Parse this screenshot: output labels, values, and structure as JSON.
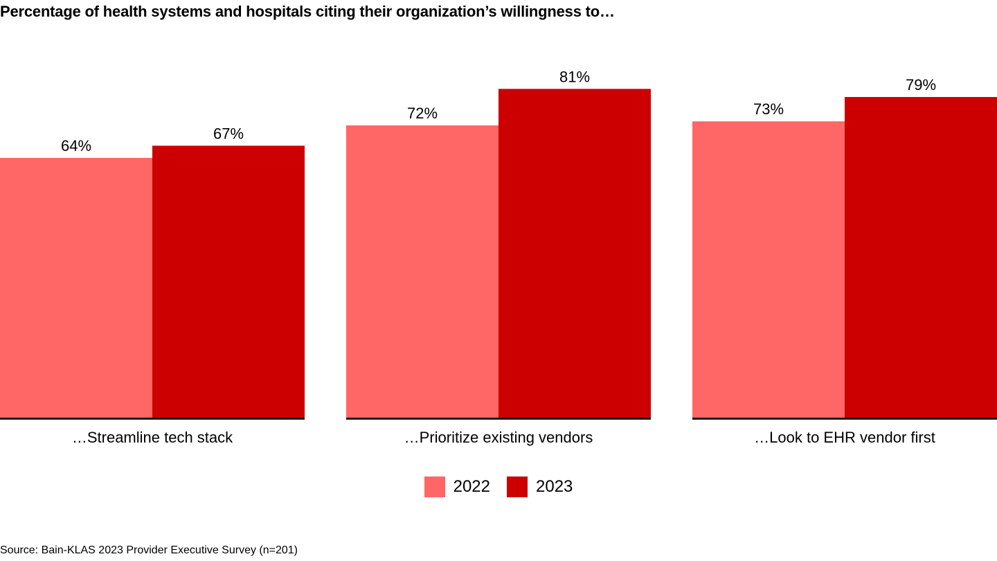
{
  "chart_data": {
    "type": "bar",
    "title": "Percentage of health systems and hospitals citing their organization’s willingness to…",
    "categories": [
      "…Streamline tech stack",
      "…Prioritize existing vendors",
      "…Look to EHR vendor first"
    ],
    "series": [
      {
        "name": "2022",
        "values": [
          64,
          72,
          73
        ],
        "labels": [
          "64%",
          "72%",
          "73%"
        ],
        "color": "#FF6666"
      },
      {
        "name": "2023",
        "values": [
          67,
          81,
          79
        ],
        "labels": [
          "67%",
          "81%",
          "79%"
        ],
        "color": "#CC0000"
      }
    ],
    "xlabel": "",
    "ylabel": "",
    "ylim": [
      0,
      100
    ],
    "grid": false,
    "legend_position": "bottom-center",
    "axis_color": "#1a1a1a",
    "source": "Source: Bain-KLAS 2023 Provider Executive Survey (n=201)"
  }
}
